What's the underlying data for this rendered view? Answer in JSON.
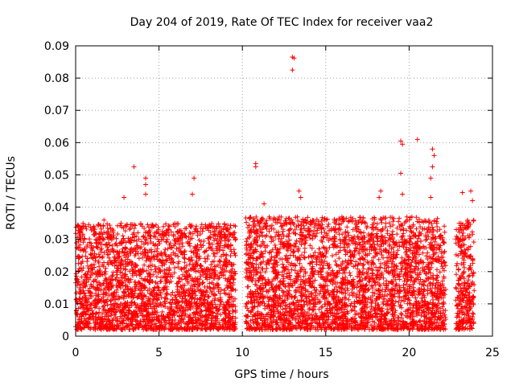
{
  "chart_data": {
    "type": "scatter",
    "title": "Day 204 of 2019, Rate Of TEC Index for receiver vaa2",
    "xlabel": "GPS time / hours",
    "ylabel": "ROTI / TECUs",
    "xlim": [
      0,
      25
    ],
    "ylim": [
      0,
      0.09
    ],
    "xticks": [
      0,
      5,
      10,
      15,
      20,
      25
    ],
    "yticks": [
      0,
      0.01,
      0.02,
      0.03,
      0.04,
      0.05,
      0.06,
      0.07,
      0.08,
      0.09
    ],
    "xtick_labels": [
      "0",
      "5",
      "10",
      "15",
      "20",
      "25"
    ],
    "ytick_labels": [
      "0",
      "0.01",
      "0.02",
      "0.03",
      "0.04",
      "0.05",
      "0.06",
      "0.07",
      "0.08",
      "0.09"
    ],
    "grid": true,
    "marker": "+",
    "color": "#ff0000",
    "series": [
      {
        "name": "ROTI",
        "segments": [
          {
            "x_start": 0.0,
            "x_end": 9.6,
            "typical_min": 0.002,
            "typical_max": 0.035
          },
          {
            "x_start": 10.2,
            "x_end": 22.2,
            "typical_min": 0.002,
            "typical_max": 0.037
          },
          {
            "x_start": 22.8,
            "x_end": 23.9,
            "typical_min": 0.002,
            "typical_max": 0.036
          }
        ],
        "notable_points": [
          {
            "x": 3.5,
            "y": 0.0525
          },
          {
            "x": 4.2,
            "y": 0.049
          },
          {
            "x": 4.2,
            "y": 0.047
          },
          {
            "x": 4.2,
            "y": 0.044
          },
          {
            "x": 2.9,
            "y": 0.043
          },
          {
            "x": 7.1,
            "y": 0.049
          },
          {
            "x": 7.0,
            "y": 0.044
          },
          {
            "x": 10.8,
            "y": 0.0535
          },
          {
            "x": 10.8,
            "y": 0.0525
          },
          {
            "x": 11.3,
            "y": 0.041
          },
          {
            "x": 13.0,
            "y": 0.0865
          },
          {
            "x": 13.1,
            "y": 0.0862
          },
          {
            "x": 13.0,
            "y": 0.0825
          },
          {
            "x": 13.4,
            "y": 0.045
          },
          {
            "x": 13.5,
            "y": 0.043
          },
          {
            "x": 18.3,
            "y": 0.045
          },
          {
            "x": 18.2,
            "y": 0.043
          },
          {
            "x": 19.5,
            "y": 0.0605
          },
          {
            "x": 19.6,
            "y": 0.0595
          },
          {
            "x": 19.5,
            "y": 0.0505
          },
          {
            "x": 19.6,
            "y": 0.044
          },
          {
            "x": 20.5,
            "y": 0.061
          },
          {
            "x": 21.4,
            "y": 0.058
          },
          {
            "x": 21.5,
            "y": 0.056
          },
          {
            "x": 21.4,
            "y": 0.0525
          },
          {
            "x": 21.3,
            "y": 0.049
          },
          {
            "x": 21.3,
            "y": 0.043
          },
          {
            "x": 23.2,
            "y": 0.0445
          },
          {
            "x": 23.7,
            "y": 0.045
          },
          {
            "x": 23.8,
            "y": 0.042
          },
          {
            "x": 16.1,
            "y": 0.036
          },
          {
            "x": 1.7,
            "y": 0.036
          }
        ]
      }
    ]
  }
}
